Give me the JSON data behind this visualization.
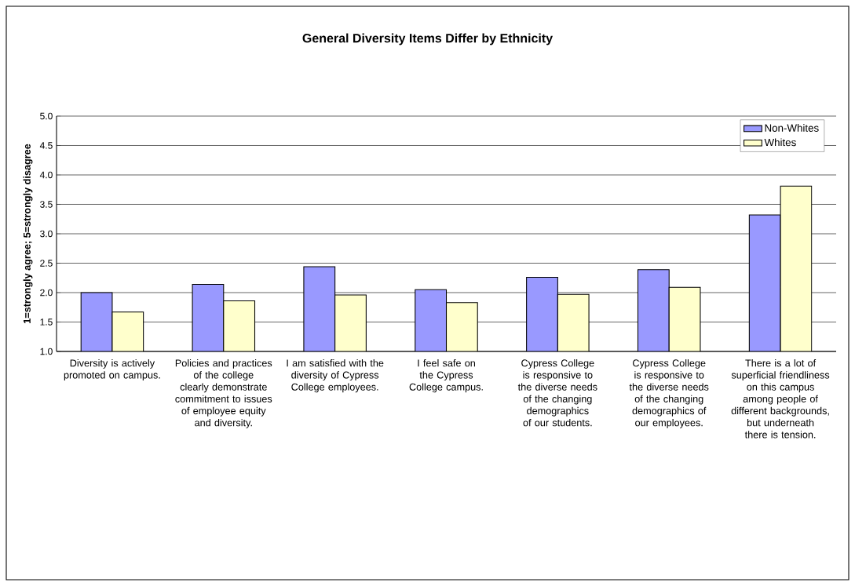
{
  "chart_data": {
    "type": "bar",
    "title": "General Diversity Items Differ by Ethnicity",
    "ylabel": "1=strongly agree; 5=strongly disagree",
    "categories": [
      "Diversity is actively promoted on campus.",
      "Policies and practices of the college clearly demonstrate commitment to issues of employee equity and diversity.",
      "I am satisfied with the diversity of Cypress College employees.",
      "I feel safe on the Cypress College campus.",
      "Cypress College is responsive to the diverse needs of the changing demographics of our students.",
      "Cypress College is responsive to the diverse needs of the changing demographics of our employees.",
      "There is a lot of superficial friendliness on this campus among people of different backgrounds, but underneath there is tension."
    ],
    "series": [
      {
        "name": "Non-Whites",
        "color": "#9999ff",
        "values": [
          2.0,
          2.14,
          2.44,
          2.05,
          2.26,
          2.39,
          3.32
        ]
      },
      {
        "name": "Whites",
        "color": "#ffffcc",
        "values": [
          1.67,
          1.86,
          1.96,
          1.83,
          1.97,
          2.09,
          3.81
        ]
      }
    ],
    "ylim": [
      1,
      5
    ],
    "yticks": [
      {
        "value": 1,
        "label": "1.0"
      },
      {
        "value": 1.5,
        "label": "1.5"
      },
      {
        "value": 2,
        "label": "2.0"
      },
      {
        "value": 2.5,
        "label": "2.5"
      },
      {
        "value": 3,
        "label": "3.0"
      },
      {
        "value": 3.5,
        "label": "3.5"
      },
      {
        "value": 4,
        "label": "4.0"
      },
      {
        "value": 4.5,
        "label": "4.5"
      },
      {
        "value": 5,
        "label": "5.0"
      }
    ],
    "grid": "y",
    "legend": "top right"
  }
}
